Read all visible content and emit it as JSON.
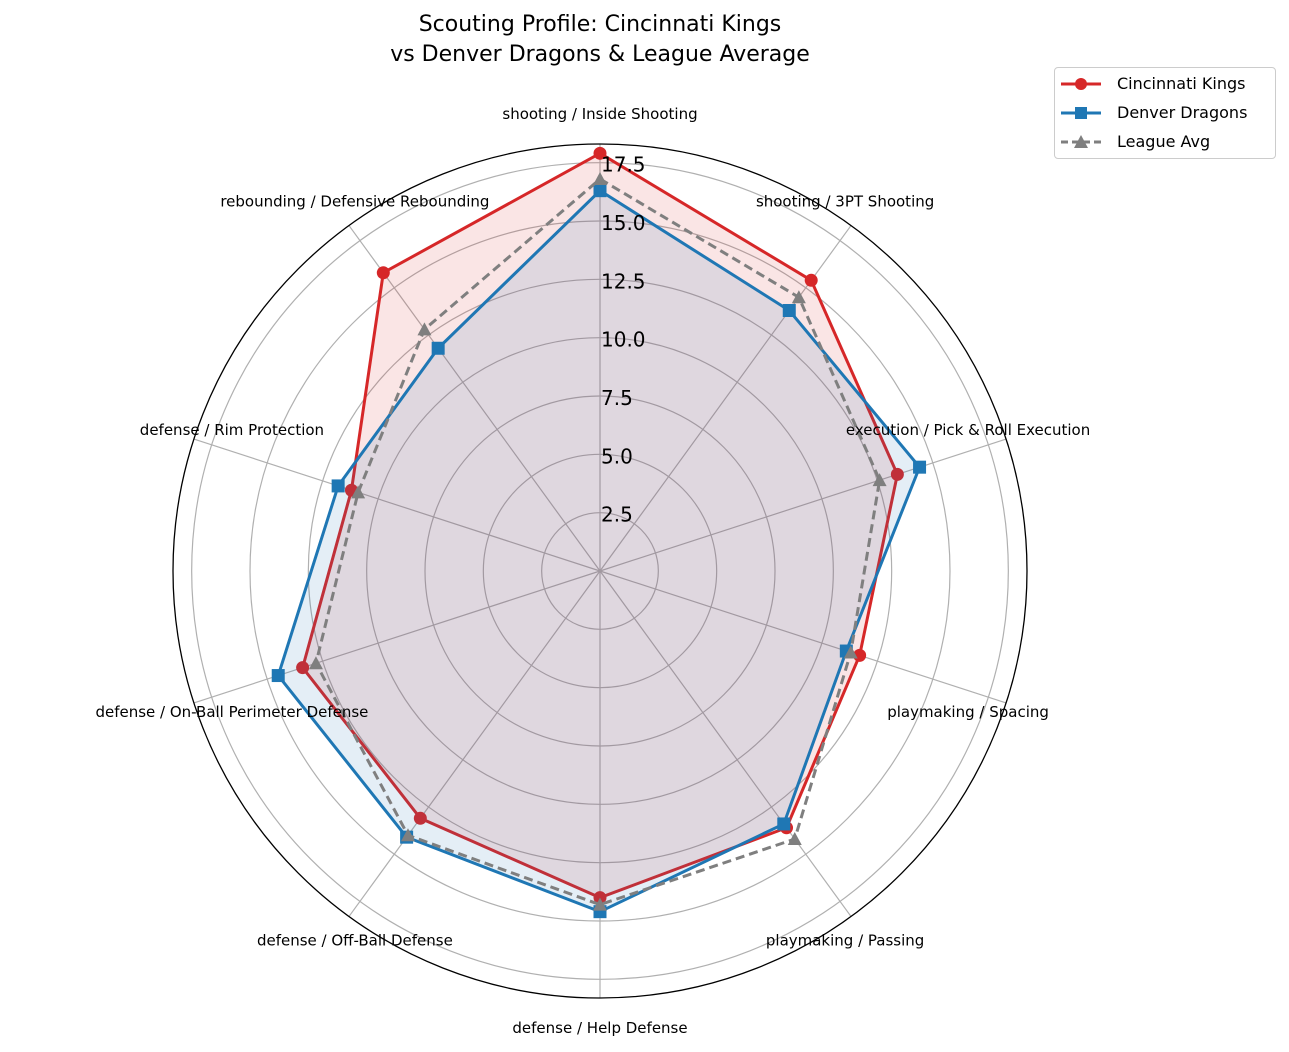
{
  "chart_data": {
    "type": "radar",
    "title": "Scouting Profile: Cincinnati Kings",
    "subtitle": "vs Denver Dragons & League Average",
    "categories": [
      "shooting / Inside Shooting",
      "shooting / 3PT Shooting",
      "execution / Pick & Roll Execution",
      "playmaking / Spacing",
      "playmaking / Passing",
      "defense / Help Defense",
      "defense / Off-Ball Defense",
      "defense / On-Ball Perimeter Defense",
      "defense / Rim Protection",
      "rebounding / Defensive Rebounding"
    ],
    "rlim": [
      0,
      18.3
    ],
    "rticks": [
      "2.5",
      "5.0",
      "7.5",
      "10.0",
      "12.5",
      "15.0",
      "17.5"
    ],
    "rtick_values": [
      2.5,
      5,
      7.5,
      10,
      12.5,
      15,
      17.5
    ],
    "legend_position": "top-right",
    "series": [
      {
        "name": "Cincinnati Kings",
        "color": "#d62728",
        "marker": "circle",
        "style": "solid",
        "fill": true,
        "values": [
          17.9,
          15.4,
          13.4,
          11.7,
          13.6,
          14.0,
          13.1,
          13.4,
          11.2,
          15.8
        ]
      },
      {
        "name": "Denver Dragons",
        "color": "#1f77b4",
        "marker": "square",
        "style": "solid",
        "fill": true,
        "values": [
          16.3,
          13.8,
          14.4,
          11.1,
          13.4,
          14.6,
          14.1,
          14.5,
          11.8,
          11.8
        ]
      },
      {
        "name": "League Avg",
        "color": "#7f7f7f",
        "marker": "triangle",
        "style": "dashed",
        "fill": false,
        "values": [
          16.8,
          14.5,
          12.6,
          11.3,
          14.2,
          14.3,
          14.0,
          12.8,
          10.9,
          12.8
        ]
      }
    ]
  }
}
